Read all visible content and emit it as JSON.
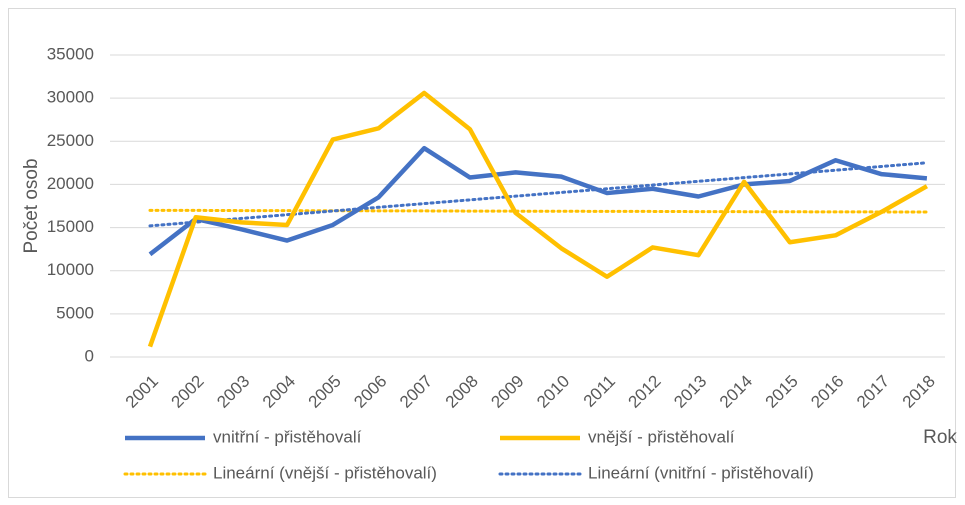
{
  "chart_data": {
    "type": "line",
    "y_label": "Počet osob",
    "x_label": "Rok",
    "categories": [
      "2001",
      "2002",
      "2003",
      "2004",
      "2005",
      "2006",
      "2007",
      "2008",
      "2009",
      "2010",
      "2011",
      "2012",
      "2013",
      "2014",
      "2015",
      "2016",
      "2017",
      "2018"
    ],
    "series": [
      {
        "name": "vnitřní - přistěhovalí",
        "color": "#4472c4",
        "style": "solid",
        "values": [
          11900,
          16000,
          14800,
          13500,
          15300,
          18500,
          24200,
          20800,
          21400,
          20900,
          19000,
          19500,
          18600,
          20000,
          20400,
          22800,
          21200,
          20700
        ]
      },
      {
        "name": "vnější - přistěhovalí",
        "color": "#ffc000",
        "style": "solid",
        "values": [
          1200,
          16200,
          15600,
          15300,
          25200,
          26500,
          30600,
          26400,
          16700,
          12600,
          9300,
          12700,
          11800,
          20300,
          13300,
          14100,
          16800,
          19800
        ]
      },
      {
        "name": "Lineární (vnější - přistěhovalí)",
        "color": "#ffc000",
        "style": "dotted",
        "values": [
          17000,
          16990,
          16970,
          16960,
          16950,
          16940,
          16930,
          16910,
          16900,
          16890,
          16880,
          16870,
          16850,
          16840,
          16830,
          16820,
          16810,
          16800
        ]
      },
      {
        "name": "Lineární (vnitřní - přistěhovalí)",
        "color": "#4472c4",
        "style": "dotted",
        "values": [
          15200,
          15630,
          16060,
          16490,
          16920,
          17350,
          17780,
          18210,
          18640,
          19070,
          19500,
          19930,
          20360,
          20790,
          21220,
          21650,
          22080,
          22510
        ]
      }
    ],
    "ylim": [
      0,
      35000
    ],
    "yticks": [
      0,
      5000,
      10000,
      15000,
      20000,
      25000,
      30000,
      35000
    ],
    "grid": true
  }
}
